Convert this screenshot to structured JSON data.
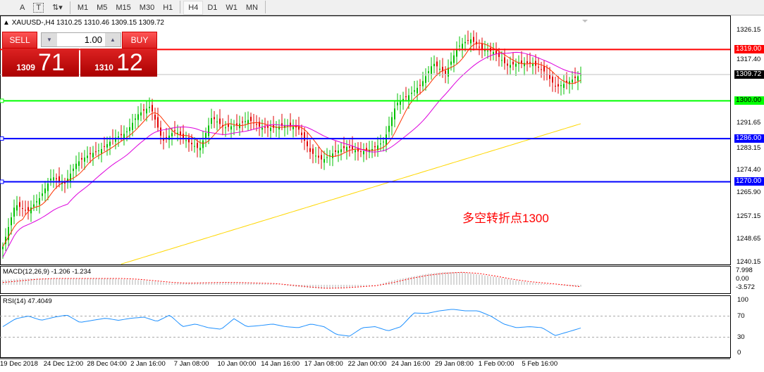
{
  "toolbar": {
    "timeframes": [
      "M1",
      "M5",
      "M15",
      "M30",
      "H1",
      "H4",
      "D1",
      "W1",
      "MN"
    ],
    "active": "H4",
    "tools": [
      "A",
      "T"
    ]
  },
  "chart_title": "XAUUSD-,H4  1310.25 1310.46 1309.15 1309.72",
  "trade_panel": {
    "sell_label": "SELL",
    "buy_label": "BUY",
    "lot": "1.00",
    "sell_small": "1309",
    "sell_big": "71",
    "buy_small": "1310",
    "buy_big": "12"
  },
  "annotation": "多空转折点1300",
  "colors": {
    "sell": "#cc1111",
    "line_1319": "#ff0000",
    "line_1300": "#00ff00",
    "line_1286": "#0000ff",
    "line_1270": "#0000ff",
    "ma_fast": "#ff3300",
    "ma_mid": "#dd00dd",
    "ma_slow": "#ffd700",
    "rsi": "#1e90ff",
    "macd_signal": "#ff0000",
    "macd_hist": "#b0b0b0"
  },
  "chart_data": {
    "type": "candlestick",
    "symbol": "XAUUSD-",
    "timeframe": "H4",
    "ylim": [
      1240.15,
      1326.15
    ],
    "y_ticks": [
      "1326.15",
      "1317.40",
      "1309.72",
      "1300.00",
      "1291.65",
      "1283.15",
      "1274.40",
      "1265.90",
      "1257.15",
      "1248.65",
      "1240.15"
    ],
    "y_tick_values": [
      1326.15,
      1317.4,
      1300.0,
      1291.65,
      1283.15,
      1274.4,
      1265.9,
      1257.15,
      1248.65,
      1240.15
    ],
    "x_ticks": [
      "19 Dec 2018",
      "24 Dec 12:00",
      "28 Dec 04:00",
      "2 Jan 16:00",
      "7 Jan 08:00",
      "10 Jan 00:00",
      "14 Jan 16:00",
      "17 Jan 08:00",
      "22 Jan 00:00",
      "24 Jan 16:00",
      "29 Jan 08:00",
      "1 Feb 00:00",
      "5 Feb 16:00"
    ],
    "current_price": "1309.72",
    "horizontal_lines": [
      {
        "value": "1319.00",
        "color": "#ff0000"
      },
      {
        "value": "1300.00",
        "color": "#00ff00"
      },
      {
        "value": "1286.00",
        "color": "#0000ff"
      },
      {
        "value": "1270.00",
        "color": "#0000ff"
      }
    ],
    "close_approx": [
      1246,
      1261.7,
      1259,
      1264,
      1272,
      1269,
      1277,
      1280,
      1282,
      1286,
      1288,
      1295,
      1298,
      1285,
      1289,
      1285,
      1282,
      1294,
      1290,
      1291,
      1293,
      1290,
      1290,
      1291,
      1290,
      1281,
      1278,
      1281,
      1283,
      1281,
      1282,
      1285,
      1299,
      1302,
      1306,
      1314,
      1310,
      1320,
      1323,
      1319,
      1318,
      1313,
      1314,
      1314,
      1311,
      1305,
      1307,
      1309.72
    ],
    "ma_slow_range": [
      1239.5,
      1291.5
    ],
    "macd": {
      "label": "MACD(12,26,9) -1.206 -1.234",
      "ticks": [
        "7.998",
        "0.00",
        "-3.572"
      ],
      "hist": [
        3,
        4,
        4,
        4,
        4,
        4,
        4,
        3.5,
        3,
        2,
        1,
        1.5,
        1.5,
        1.5,
        1.5,
        1,
        0.5,
        -1,
        -2,
        -2.5,
        -2,
        -1,
        0,
        3,
        5,
        7,
        8,
        8,
        6.5,
        5,
        3,
        1.5,
        0.5,
        -0.5,
        -1.2
      ],
      "signal": [
        1.5,
        2.5,
        3.5,
        4,
        4,
        4,
        4,
        4,
        3.5,
        2.5,
        1.5,
        1,
        1.3,
        1.5,
        1.4,
        1.1,
        0.8,
        -0.2,
        -1.3,
        -2.2,
        -2,
        -1.3,
        -0.5,
        1.5,
        4,
        6,
        7.3,
        7.9,
        7.2,
        5.5,
        3.5,
        2,
        1,
        0,
        -1.234
      ]
    },
    "rsi": {
      "label": "RSI(14) 47.4049",
      "ticks": [
        "100",
        "70",
        "30",
        "0"
      ],
      "levels": [
        70,
        30
      ],
      "values": [
        50,
        65,
        70,
        62,
        68,
        72,
        58,
        62,
        66,
        62,
        66,
        68,
        60,
        72,
        50,
        55,
        48,
        45,
        65,
        50,
        52,
        55,
        50,
        48,
        55,
        50,
        35,
        32,
        48,
        50,
        42,
        50,
        76,
        75,
        80,
        83,
        80,
        80,
        70,
        55,
        48,
        50,
        48,
        33,
        40,
        47.4
      ]
    }
  }
}
